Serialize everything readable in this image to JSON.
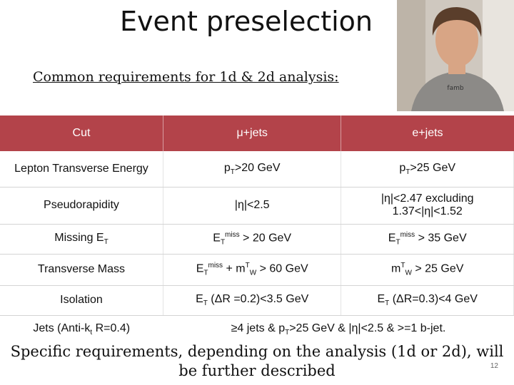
{
  "slide": {
    "title": "Event preselection",
    "subtitle": "Common requirements for 1d & 2d analysis:",
    "note": "Specific requirements, depending on the analysis (1d or 2d), will be further described",
    "page_number": "12"
  },
  "table": {
    "headers": [
      "Cut",
      "μ+jets",
      "e+jets"
    ],
    "rows": [
      {
        "cut": "Lepton Transverse Energy",
        "mu": "pT>20 GeV",
        "e": "pT>25 GeV"
      },
      {
        "cut": "Pseudorapidity",
        "mu": "|η|<2.5",
        "e": "|η|<2.47 excluding 1.37<|η|<1.52"
      },
      {
        "cut": "Missing ET",
        "mu": "ETmiss > 20 GeV",
        "e": "ETmiss > 35 GeV"
      },
      {
        "cut": "Transverse Mass",
        "mu": "ETmiss + mTW > 60 GeV",
        "e": "mTW > 25 GeV"
      },
      {
        "cut": "Isolation",
        "mu": "ET (ΔR =0.2)<3.5 GeV",
        "e": "ET (ΔR=0.3)<4 GeV"
      },
      {
        "cut": "Jets (Anti-kt R=0.4)",
        "both": "≥4 jets & pT>25 GeV & |η|<2.5 & >=1 b-jet."
      }
    ]
  },
  "colors": {
    "header_bg": "#b3434a",
    "header_text": "#ffffff"
  }
}
